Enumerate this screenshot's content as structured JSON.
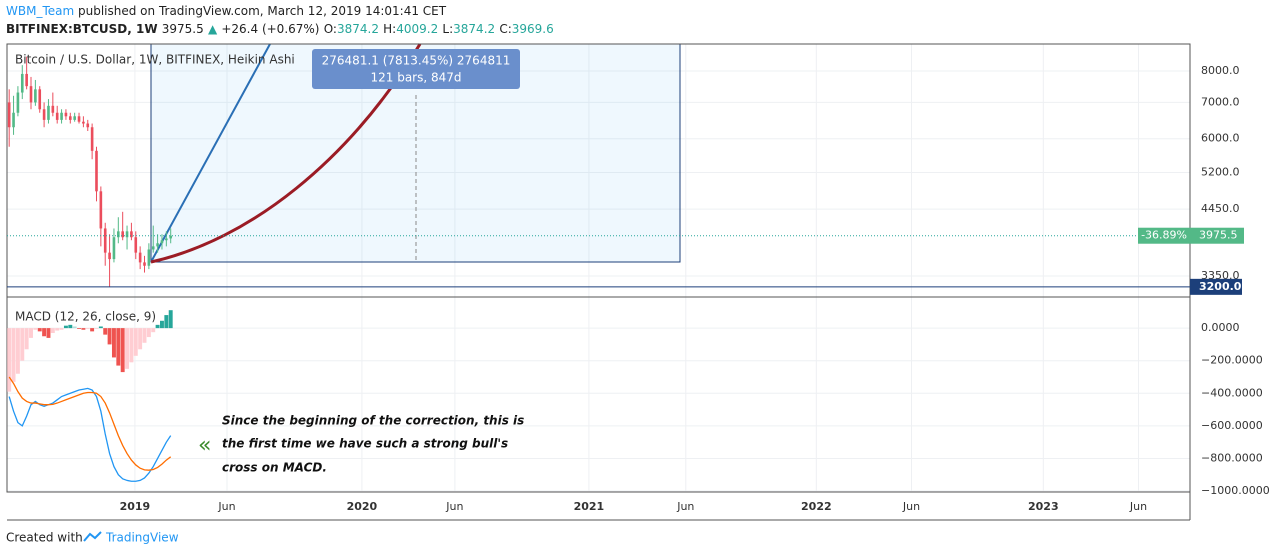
{
  "header": {
    "author": "WBM_Team",
    "published": "published on TradingView.com, March 12, 2019 14:01:41 CET",
    "symbol": "BITFINEX:BTCUSD, 1W",
    "arrow": "▲",
    "change": "+26.4 (+0.67%)",
    "o_label": "O:",
    "o": "3874.2",
    "h_label": "H:",
    "h": "4009.2",
    "l_label": "L:",
    "l": "3874.2",
    "c_label": "C:",
    "c": "3969.6"
  },
  "footer": {
    "created": "Created with",
    "brand": "TradingView"
  },
  "annotation": [
    "Since the beginning of the correction, this is",
    "the first time we have such a strong bull's",
    "cross on MACD."
  ],
  "measure": [
    "276481.1 (7813.45%) 2764811",
    "121 bars, 847d"
  ],
  "chart_data": [
    {
      "type": "candlestick",
      "title": "Bitcoin / U.S. Dollar, 1W, BITFINEX, Heikin Ashi",
      "log_scale": true,
      "up_color": "#53b987",
      "down_color": "#eb4d5c",
      "open": [
        7000,
        6300,
        6700,
        7300,
        7900,
        7500,
        7000,
        7400,
        6800,
        6500,
        6900,
        6700,
        6500,
        6700,
        6600,
        6500,
        6600,
        6450,
        6400,
        6300,
        5700,
        4800,
        4100,
        3700,
        3600,
        3950,
        4050,
        3950,
        4050,
        3950,
        3700,
        3550,
        3500,
        3750,
        3800,
        3850,
        3900,
        3930
      ],
      "high": [
        7400,
        7200,
        7500,
        8200,
        8500,
        7800,
        7700,
        7500,
        7000,
        7100,
        7300,
        6900,
        6800,
        6800,
        6700,
        6700,
        6700,
        6600,
        6500,
        6400,
        5800,
        4900,
        4200,
        4000,
        4100,
        4300,
        4400,
        4150,
        4200,
        4050,
        3800,
        3650,
        3850,
        4150,
        4000,
        4000,
        4050,
        4100
      ],
      "low": [
        5800,
        6100,
        6600,
        7100,
        7400,
        6800,
        6900,
        6700,
        6300,
        6400,
        6600,
        6400,
        6400,
        6500,
        6400,
        6450,
        6400,
        6300,
        6200,
        5500,
        4600,
        3800,
        3500,
        3200,
        3550,
        3850,
        3900,
        3750,
        3900,
        3600,
        3450,
        3400,
        3450,
        3700,
        3700,
        3750,
        3800,
        3850
      ],
      "close": [
        6300,
        6700,
        7300,
        7900,
        7500,
        7000,
        7400,
        6800,
        6500,
        6900,
        6700,
        6500,
        6700,
        6600,
        6500,
        6600,
        6450,
        6400,
        6300,
        5700,
        4800,
        4100,
        3700,
        3600,
        3950,
        4050,
        3950,
        4050,
        3950,
        3700,
        3550,
        3500,
        3750,
        3800,
        3850,
        3900,
        3930,
        3975.5
      ],
      "change_label": "-36.89%",
      "hline": {
        "value": 3200,
        "label": "3200.0"
      },
      "ylim": [
        3065,
        8970
      ],
      "yticks": [
        {
          "value": 3350,
          "label": "3350.0"
        },
        {
          "value": 4450,
          "label": "4450.0"
        },
        {
          "value": 5200,
          "label": "5200.0"
        },
        {
          "value": 6000,
          "label": "6000.0"
        },
        {
          "value": 7000,
          "label": "7000.0"
        },
        {
          "value": 8000,
          "label": "8000.0"
        }
      ]
    },
    {
      "type": "macd",
      "title": "MACD (12, 26, close, 9)",
      "series": [
        {
          "colors": {
            "below_falling": "#ef5350",
            "below_rising": "#ffcdd2",
            "above_rising": "#26a69a",
            "above_falling": "#b2dfdb"
          },
          "values": [
            -390,
            -330,
            -280,
            -200,
            -130,
            -60,
            -10,
            -20,
            -50,
            -60,
            -30,
            -15,
            -10,
            15,
            20,
            10,
            -5,
            -10,
            -5,
            -20,
            -5,
            10,
            -40,
            -100,
            -180,
            -230,
            -270,
            -250,
            -210,
            -170,
            -130,
            -90,
            -55,
            -25,
            20,
            45,
            80,
            110
          ]
        },
        {
          "color": "#2196f3",
          "values": [
            -420,
            -510,
            -580,
            -600,
            -540,
            -470,
            -450,
            -470,
            -480,
            -470,
            -460,
            -440,
            -420,
            -410,
            -400,
            -390,
            -380,
            -375,
            -370,
            -380,
            -420,
            -510,
            -650,
            -770,
            -850,
            -900,
            -925,
            -935,
            -940,
            -940,
            -935,
            -920,
            -890,
            -850,
            -800,
            -750,
            -700,
            -660
          ]
        },
        {
          "color": "#ff6d00",
          "values": [
            -300,
            -340,
            -390,
            -430,
            -450,
            -460,
            -460,
            -465,
            -470,
            -470,
            -468,
            -460,
            -450,
            -440,
            -430,
            -420,
            -410,
            -400,
            -395,
            -395,
            -400,
            -420,
            -460,
            -520,
            -590,
            -660,
            -720,
            -770,
            -810,
            -840,
            -860,
            -870,
            -872,
            -868,
            -855,
            -835,
            -810,
            -790
          ]
        }
      ],
      "ylim": [
        -1006,
        191
      ],
      "yticks": [
        {
          "value": 0,
          "label": "0.0000"
        },
        {
          "value": -200,
          "label": "−200.0000"
        },
        {
          "value": -400,
          "label": "−400.0000"
        },
        {
          "value": -600,
          "label": "−600.0000"
        },
        {
          "value": -800,
          "label": "−800.0000"
        },
        {
          "value": -1000,
          "label": "−1000.0000"
        }
      ],
      "xlim": [
        0,
        271
      ],
      "xticks": [
        {
          "value": 29.3,
          "label": "2019"
        },
        {
          "value": 50.4,
          "label": "Jun"
        },
        {
          "value": 81.3,
          "label": "2020"
        },
        {
          "value": 102.6,
          "label": "Jun"
        },
        {
          "value": 133.3,
          "label": "2021"
        },
        {
          "value": 155.5,
          "label": "Jun"
        },
        {
          "value": 185.4,
          "label": "2022"
        },
        {
          "value": 207.2,
          "label": "Jun"
        },
        {
          "value": 237.4,
          "label": "2023"
        },
        {
          "value": 259.2,
          "label": "Jun"
        }
      ]
    }
  ]
}
